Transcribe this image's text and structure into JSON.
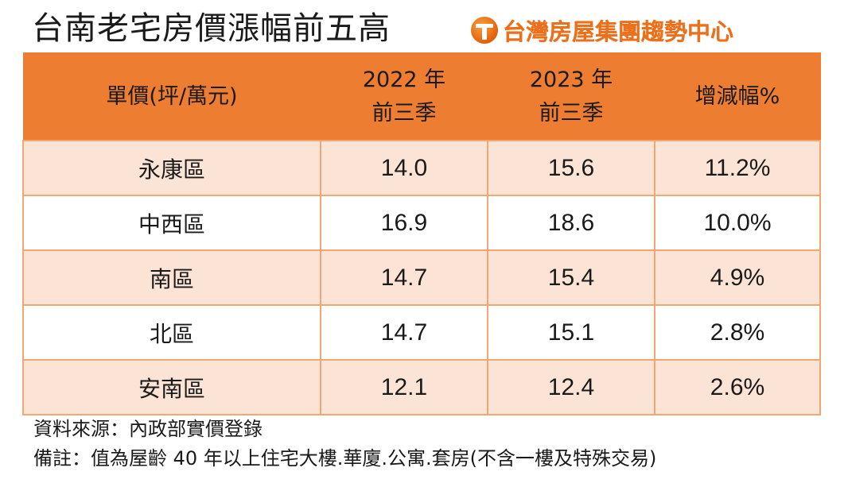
{
  "title": "台南老宅房價漲幅前五高",
  "brand": {
    "logo_icon": "taiwan-realty-t-logo-icon",
    "name": "台灣房屋集團趨勢中心",
    "color": "#ec6f1a"
  },
  "table": {
    "header_color": "#ed7d31",
    "odd_row_color": "#fbe4d5",
    "headers": [
      {
        "lines": [
          "單價(坪/萬元)"
        ]
      },
      {
        "lines": [
          "2022 年",
          "前三季"
        ]
      },
      {
        "lines": [
          "2023 年",
          "前三季"
        ]
      },
      {
        "lines": [
          "增減幅%"
        ]
      }
    ],
    "rows": [
      {
        "district": "永康區",
        "y2022": "14.0",
        "y2023": "15.6",
        "change": "11.2%"
      },
      {
        "district": "中西區",
        "y2022": "16.9",
        "y2023": "18.6",
        "change": "10.0%"
      },
      {
        "district": "南區",
        "y2022": "14.7",
        "y2023": "15.4",
        "change": "4.9%"
      },
      {
        "district": "北區",
        "y2022": "14.7",
        "y2023": "15.1",
        "change": "2.8%"
      },
      {
        "district": "安南區",
        "y2022": "12.1",
        "y2023": "12.4",
        "change": "2.6%"
      }
    ]
  },
  "notes": {
    "source": "資料來源：內政部實價登錄",
    "remark": "備註：值為屋齡 40 年以上住宅大樓.華廈.公寓.套房(不含一樓及特殊交易)"
  }
}
